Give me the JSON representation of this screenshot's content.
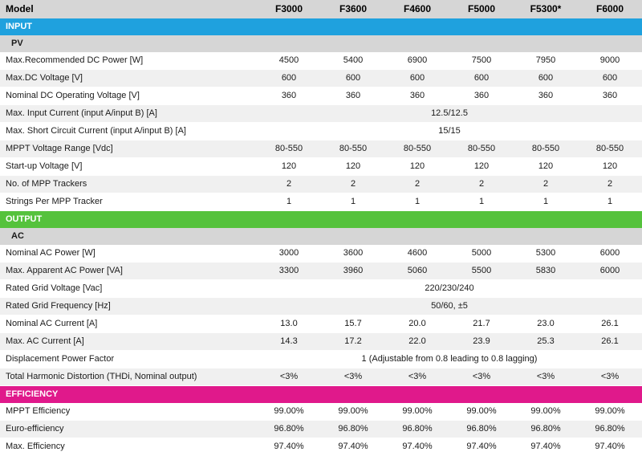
{
  "header": {
    "label": "Model",
    "models": [
      "F3000",
      "F3600",
      "F4600",
      "F5000",
      "F5300*",
      "F6000"
    ]
  },
  "sections": {
    "input": {
      "title": "INPUT",
      "sub": "PV",
      "rows": [
        {
          "label": "Max.Recommended DC Power [W]",
          "values": [
            "4500",
            "5400",
            "6900",
            "7500",
            "7950",
            "9000"
          ]
        },
        {
          "label": "Max.DC Voltage [V]",
          "values": [
            "600",
            "600",
            "600",
            "600",
            "600",
            "600"
          ]
        },
        {
          "label": "Nominal DC Operating Voltage [V]",
          "values": [
            "360",
            "360",
            "360",
            "360",
            "360",
            "360"
          ]
        },
        {
          "label": "Max. Input Current (input A/input B) [A]",
          "span": "12.5/12.5"
        },
        {
          "label": "Max. Short Circuit Current (input A/input B) [A]",
          "span": "15/15"
        },
        {
          "label": "MPPT Voltage Range [Vdc]",
          "values": [
            "80-550",
            "80-550",
            "80-550",
            "80-550",
            "80-550",
            "80-550"
          ]
        },
        {
          "label": "Start-up Voltage [V]",
          "values": [
            "120",
            "120",
            "120",
            "120",
            "120",
            "120"
          ]
        },
        {
          "label": "No. of MPP Trackers",
          "values": [
            "2",
            "2",
            "2",
            "2",
            "2",
            "2"
          ]
        },
        {
          "label": "Strings Per MPP Tracker",
          "values": [
            "1",
            "1",
            "1",
            "1",
            "1",
            "1"
          ]
        }
      ]
    },
    "output": {
      "title": "OUTPUT",
      "sub": "AC",
      "rows": [
        {
          "label": "Nominal AC Power [W]",
          "values": [
            "3000",
            "3600",
            "4600",
            "5000",
            "5300",
            "6000"
          ]
        },
        {
          "label": "Max. Apparent AC Power [VA]",
          "values": [
            "3300",
            "3960",
            "5060",
            "5500",
            "5830",
            "6000"
          ]
        },
        {
          "label": "Rated Grid Voltage [Vac]",
          "span": "220/230/240"
        },
        {
          "label": "Rated Grid Frequency [Hz]",
          "span": "50/60, ±5"
        },
        {
          "label": "Nominal AC Current [A]",
          "values": [
            "13.0",
            "15.7",
            "20.0",
            "21.7",
            "23.0",
            "26.1"
          ]
        },
        {
          "label": "Max. AC Current [A]",
          "values": [
            "14.3",
            "17.2",
            "22.0",
            "23.9",
            "25.3",
            "26.1"
          ]
        },
        {
          "label": "Displacement Power Factor",
          "span": "1 (Adjustable from 0.8 leading to 0.8 lagging)"
        },
        {
          "label": "Total Harmonic Distortion (THDi, Nominal output)",
          "values": [
            "<3%",
            "<3%",
            "<3%",
            "<3%",
            "<3%",
            "<3%"
          ]
        }
      ]
    },
    "efficiency": {
      "title": "EFFICIENCY",
      "rows": [
        {
          "label": "MPPT Efficiency",
          "values": [
            "99.00%",
            "99.00%",
            "99.00%",
            "99.00%",
            "99.00%",
            "99.00%"
          ]
        },
        {
          "label": "Euro-efficiency",
          "values": [
            "96.80%",
            "96.80%",
            "96.80%",
            "96.80%",
            "96.80%",
            "96.80%"
          ]
        },
        {
          "label": "Max. Efficiency",
          "values": [
            "97.40%",
            "97.40%",
            "97.40%",
            "97.40%",
            "97.40%",
            "97.40%"
          ]
        }
      ]
    }
  },
  "colors": {
    "input": "#1fa1de",
    "output": "#55c23c",
    "efficiency": "#e0198b",
    "header": "#d6d6d6"
  }
}
